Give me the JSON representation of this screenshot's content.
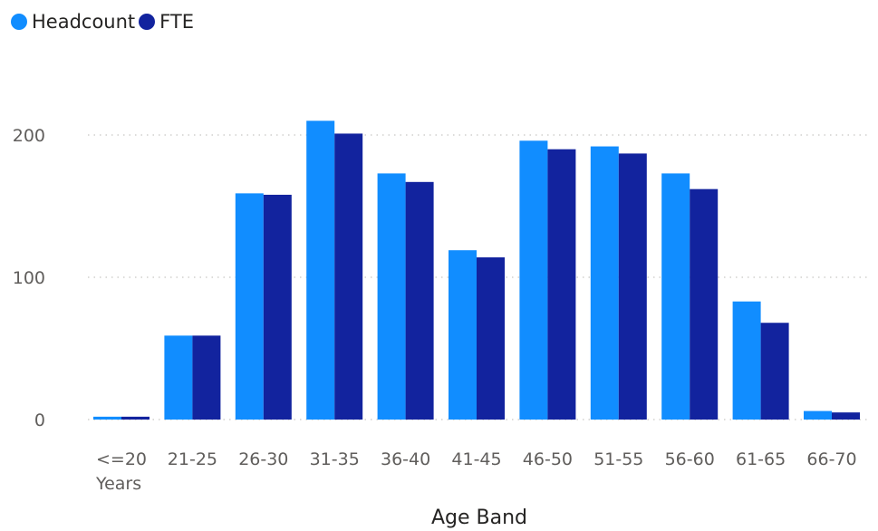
{
  "chart_data": {
    "type": "bar",
    "title": "",
    "xlabel": "Age Band",
    "ylabel": "",
    "ylim": [
      0,
      220
    ],
    "yticks": [
      0,
      100,
      200
    ],
    "grid": true,
    "legend_position": "top-left",
    "categories": [
      "<=20 Years",
      "21-25",
      "26-30",
      "31-35",
      "36-40",
      "41-45",
      "46-50",
      "51-55",
      "56-60",
      "61-65",
      "66-70"
    ],
    "category_label_lines": [
      [
        "<=20",
        "Years"
      ],
      [
        "21-25"
      ],
      [
        "26-30"
      ],
      [
        "31-35"
      ],
      [
        "36-40"
      ],
      [
        "41-45"
      ],
      [
        "46-50"
      ],
      [
        "51-55"
      ],
      [
        "56-60"
      ],
      [
        "61-65"
      ],
      [
        "66-70"
      ]
    ],
    "series": [
      {
        "name": "Headcount",
        "color": "#118dff",
        "values": [
          2,
          59,
          159,
          210,
          173,
          119,
          196,
          192,
          173,
          83,
          6
        ]
      },
      {
        "name": "FTE",
        "color": "#12239e",
        "values": [
          2,
          59,
          158,
          201,
          167,
          114,
          190,
          187,
          162,
          68,
          5
        ]
      }
    ]
  }
}
